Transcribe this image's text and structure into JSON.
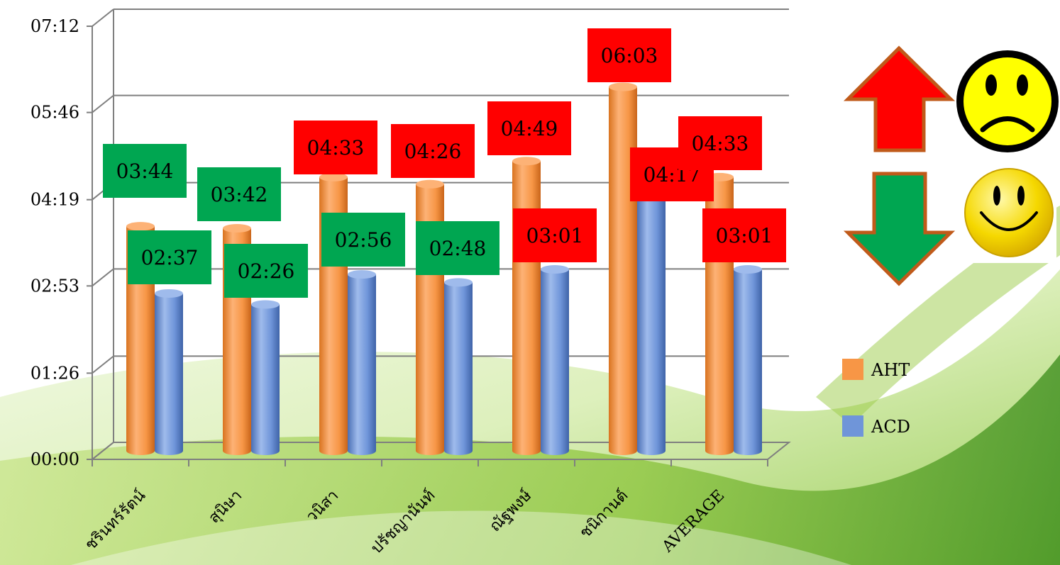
{
  "chart_data": {
    "type": "bar",
    "categories": [
      "ชรินทร์รัตน์",
      "สุนิษา",
      "วนิสา",
      "ปรัชญานันท์",
      "ณัฐพงษ์",
      "ชนิกานต์",
      "AVERAGE"
    ],
    "series": [
      {
        "name": "AHT",
        "color": "#F79646",
        "values": [
          "03:44",
          "03:42",
          "04:33",
          "04:26",
          "04:49",
          "06:03",
          "04:33"
        ]
      },
      {
        "name": "ACD",
        "color": "#6F95D9",
        "values": [
          "02:37",
          "02:26",
          "02:56",
          "02:48",
          "03:01",
          "04:17",
          "03:01"
        ]
      }
    ],
    "label_colors": {
      "AHT": [
        "#00A651",
        "#00A651",
        "#FF0000",
        "#FF0000",
        "#FF0000",
        "#FF0000",
        "#FF0000"
      ],
      "ACD": [
        "#00A651",
        "#00A651",
        "#00A651",
        "#00A651",
        "#FF0000",
        "#FF0000",
        "#FF0000"
      ]
    },
    "y_ticks": [
      "00:00",
      "01:26",
      "02:53",
      "04:19",
      "05:46",
      "07:12"
    ],
    "ylim_seconds": [
      0,
      432
    ],
    "grid": true,
    "legend_position": "right",
    "indicators": [
      {
        "icon": "red-up-arrow-icon",
        "meaning": "sad-face-icon"
      },
      {
        "icon": "green-down-arrow-icon",
        "meaning": "smiley-face-icon"
      }
    ]
  }
}
